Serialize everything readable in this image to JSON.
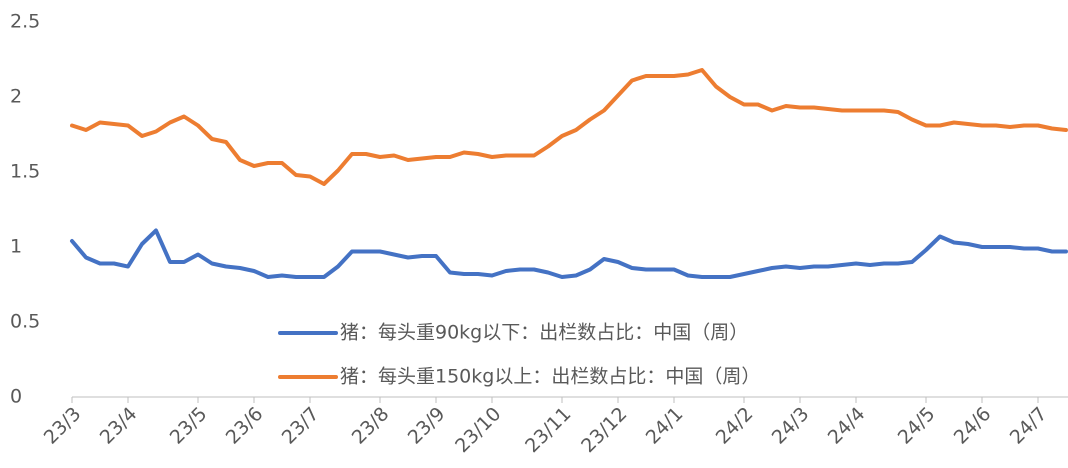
{
  "chart_data": {
    "type": "line",
    "categories": [
      "23/3",
      null,
      null,
      null,
      "23/4",
      null,
      null,
      null,
      null,
      "23/5",
      null,
      null,
      null,
      "23/6",
      null,
      null,
      null,
      "23/7",
      null,
      null,
      null,
      null,
      "23/8",
      null,
      null,
      null,
      "23/9",
      null,
      null,
      null,
      "23/10",
      null,
      null,
      null,
      null,
      "23/11",
      null,
      null,
      null,
      "23/12",
      null,
      null,
      null,
      "24/1",
      null,
      null,
      null,
      null,
      "24/2",
      null,
      null,
      null,
      "24/3",
      null,
      null,
      null,
      "24/4",
      null,
      null,
      null,
      null,
      "24/5",
      null,
      null,
      null,
      "24/6",
      null,
      null,
      null,
      "24/7",
      null,
      null
    ],
    "series": [
      {
        "name": "猪：每头重90kg以下：出栏数占比：中国（周）",
        "color": "#4472c4",
        "values": [
          1.04,
          0.93,
          0.89,
          0.89,
          0.87,
          1.02,
          1.11,
          0.9,
          0.9,
          0.95,
          0.89,
          0.87,
          0.86,
          0.84,
          0.8,
          0.81,
          0.8,
          0.8,
          0.8,
          0.87,
          0.97,
          0.97,
          0.97,
          0.95,
          0.93,
          0.94,
          0.94,
          0.83,
          0.82,
          0.82,
          0.81,
          0.84,
          0.85,
          0.85,
          0.83,
          0.8,
          0.81,
          0.85,
          0.92,
          0.9,
          0.86,
          0.85,
          0.85,
          0.85,
          0.81,
          0.8,
          0.8,
          0.8,
          0.82,
          0.84,
          0.86,
          0.87,
          0.86,
          0.87,
          0.87,
          0.88,
          0.89,
          0.88,
          0.89,
          0.89,
          0.9,
          0.98,
          1.07,
          1.03,
          1.02,
          1.0,
          1.0,
          1.0,
          0.99,
          0.99,
          0.97,
          0.97
        ]
      },
      {
        "name": "猪：每头重150kg以上：出栏数占比：中国（周）",
        "color": "#ed7d31",
        "values": [
          1.81,
          1.78,
          1.83,
          1.82,
          1.81,
          1.74,
          1.77,
          1.83,
          1.87,
          1.81,
          1.72,
          1.7,
          1.58,
          1.54,
          1.56,
          1.56,
          1.48,
          1.47,
          1.42,
          1.51,
          1.62,
          1.62,
          1.6,
          1.61,
          1.58,
          1.59,
          1.6,
          1.6,
          1.63,
          1.62,
          1.6,
          1.61,
          1.61,
          1.61,
          1.67,
          1.74,
          1.78,
          1.85,
          1.91,
          2.01,
          2.11,
          2.14,
          2.14,
          2.14,
          2.15,
          2.18,
          2.07,
          2.0,
          1.95,
          1.95,
          1.91,
          1.94,
          1.93,
          1.93,
          1.92,
          1.91,
          1.91,
          1.91,
          1.91,
          1.9,
          1.85,
          1.81,
          1.81,
          1.83,
          1.82,
          1.81,
          1.81,
          1.8,
          1.81,
          1.81,
          1.79,
          1.78
        ]
      }
    ],
    "ylim": [
      0,
      2.5
    ],
    "yticks": [
      0,
      0.5,
      1,
      1.5,
      2,
      2.5
    ],
    "grid": false,
    "legend": "bottom"
  }
}
